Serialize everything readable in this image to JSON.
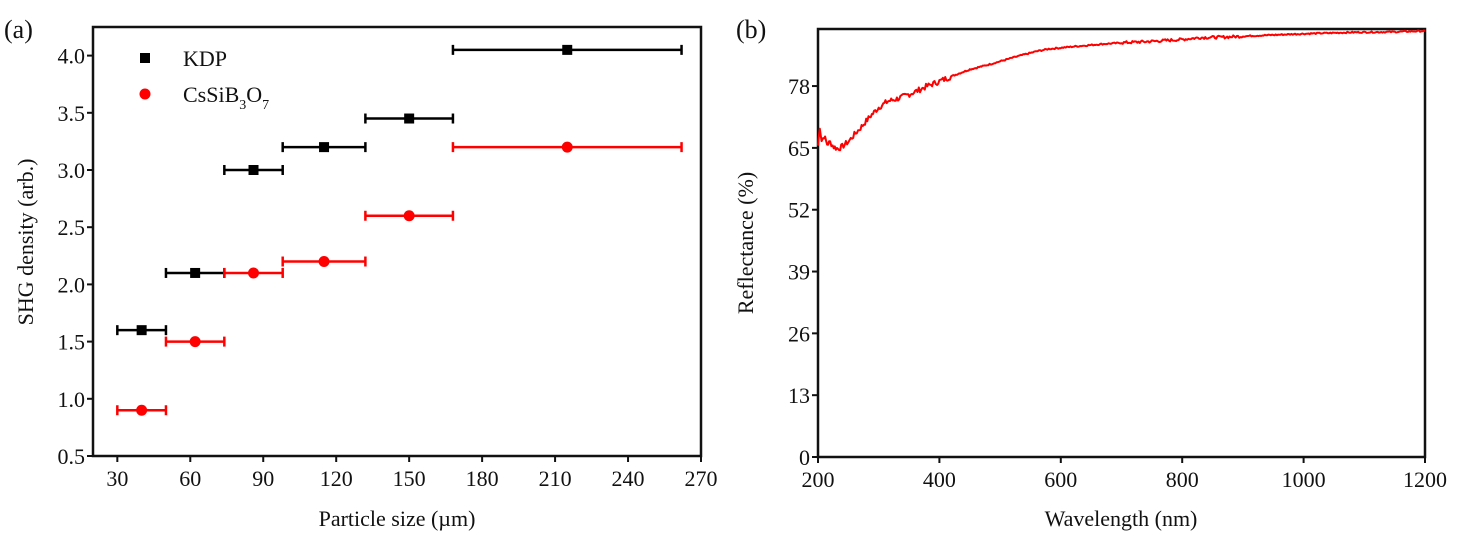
{
  "chart_data": [
    {
      "panel": "(a)",
      "type": "scatter",
      "xlabel": "Particle size (µm)",
      "ylabel": "SHG density (arb.)",
      "xlim": [
        20,
        270
      ],
      "ylim": [
        0.5,
        4.25
      ],
      "xticks": [
        30,
        60,
        90,
        120,
        150,
        180,
        210,
        240,
        270
      ],
      "yticks": [
        0.5,
        1.0,
        1.5,
        2.0,
        2.5,
        3.0,
        3.5,
        4.0
      ],
      "ytick_labels": [
        "0.5",
        "1.0",
        "1.5",
        "2.0",
        "2.5",
        "3.0",
        "3.5",
        "4.0"
      ],
      "grid": false,
      "legend_position": "top-left",
      "x_ranges": [
        [
          30,
          50
        ],
        [
          50,
          74
        ],
        [
          74,
          98
        ],
        [
          98,
          132
        ],
        [
          132,
          168
        ],
        [
          168,
          262
        ]
      ],
      "x": [
        40,
        62,
        86,
        115,
        150,
        215
      ],
      "series": [
        {
          "name": "KDP",
          "marker": "square",
          "color": "#000000",
          "values": [
            1.6,
            2.1,
            3.0,
            3.2,
            3.45,
            4.05
          ]
        },
        {
          "name": "CsSiB3O7",
          "name_parts": {
            "base1": "CsSiB",
            "sub1": "3",
            "base2": "O",
            "sub2": "7"
          },
          "marker": "circle",
          "color": "#ff0000",
          "values": [
            0.9,
            1.5,
            2.1,
            2.2,
            2.6,
            3.2
          ]
        }
      ]
    },
    {
      "panel": "(b)",
      "type": "line",
      "xlabel": "Wavelength (nm)",
      "ylabel": "Reflectance (%)",
      "xlim": [
        200,
        1200
      ],
      "ylim": [
        0,
        90
      ],
      "xticks": [
        200,
        400,
        600,
        800,
        1000,
        1200
      ],
      "yticks": [
        0,
        13,
        26,
        39,
        52,
        65,
        78
      ],
      "grid": false,
      "series": [
        {
          "name": "Reflectance",
          "color": "#ff0000",
          "x": [
            200,
            203,
            206,
            210,
            215,
            220,
            226,
            233,
            240,
            250,
            260,
            270,
            285,
            300,
            315,
            330,
            345,
            360,
            380,
            400,
            425,
            450,
            475,
            500,
            530,
            560,
            580,
            620,
            665,
            700,
            750,
            800,
            830,
            870,
            920,
            1000,
            1080,
            1150,
            1200
          ],
          "values": [
            65.5,
            69.5,
            66.5,
            67.5,
            65.8,
            66.2,
            65.2,
            64.8,
            65.3,
            66.3,
            67.8,
            69.2,
            71.5,
            73.5,
            74.8,
            75.3,
            76.0,
            76.8,
            78.0,
            79.0,
            80.3,
            81.5,
            82.3,
            83.2,
            84.3,
            85.3,
            85.8,
            86.3,
            86.8,
            87.1,
            87.4,
            87.8,
            88.2,
            88.3,
            88.6,
            89.0,
            89.3,
            89.4,
            89.6
          ]
        }
      ]
    }
  ]
}
